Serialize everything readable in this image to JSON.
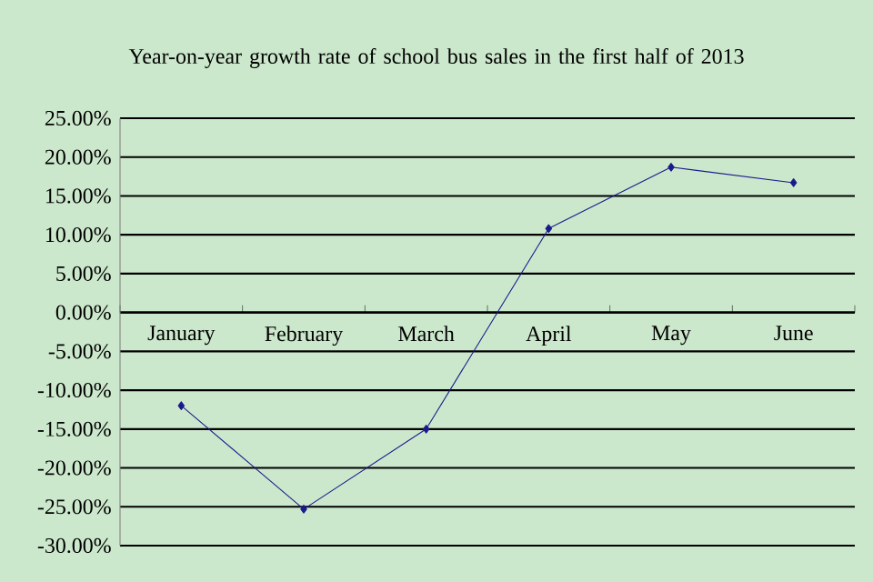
{
  "chart_data": {
    "type": "line",
    "title": "Year-on-year growth rate of school bus sales in the first half of 2013",
    "categories": [
      "January",
      "February",
      "March",
      "April",
      "May",
      "June"
    ],
    "series": [
      {
        "color": "#1a1a8c",
        "values": [
          -12.0,
          -25.3,
          -15.0,
          10.8,
          18.7,
          16.7
        ]
      }
    ],
    "ylim": [
      -30,
      25
    ],
    "yticks": [
      {
        "value": -30,
        "label": "-30.00%"
      },
      {
        "value": -25,
        "label": "-25.00%"
      },
      {
        "value": -20,
        "label": "-20.00%"
      },
      {
        "value": -15,
        "label": "-15.00%"
      },
      {
        "value": -10,
        "label": "-10.00%"
      },
      {
        "value": -5,
        "label": "-5.00%"
      },
      {
        "value": 0,
        "label": "0.00%"
      },
      {
        "value": 5,
        "label": "5.00%"
      },
      {
        "value": 10,
        "label": "10.00%"
      },
      {
        "value": 15,
        "label": "15.00%"
      },
      {
        "value": 20,
        "label": "20.00%"
      },
      {
        "value": 25,
        "label": "25.00%"
      }
    ],
    "grid": "y",
    "marker": "diamond",
    "line_style": "solid"
  }
}
